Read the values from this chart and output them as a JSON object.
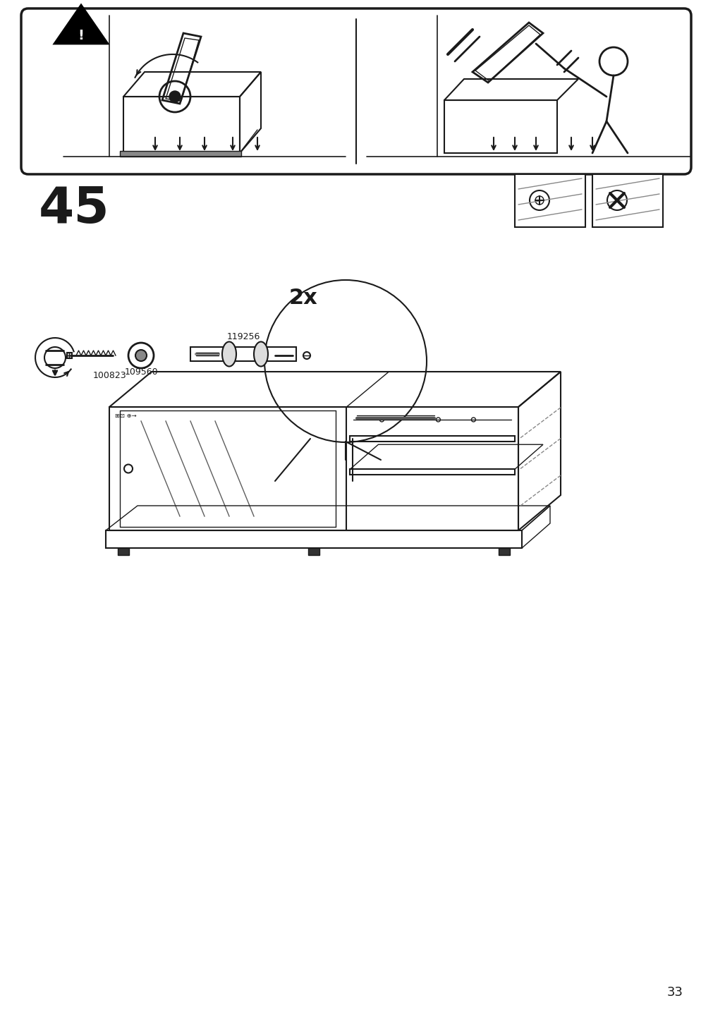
{
  "page_number": "33",
  "step_number": "45",
  "bg_color": "#ffffff",
  "line_color": "#1a1a1a",
  "part_numbers": [
    "100823",
    "109560",
    "119256"
  ],
  "quantity_label": "2x",
  "fig_width": 10.12,
  "fig_height": 14.32,
  "dpi": 100
}
